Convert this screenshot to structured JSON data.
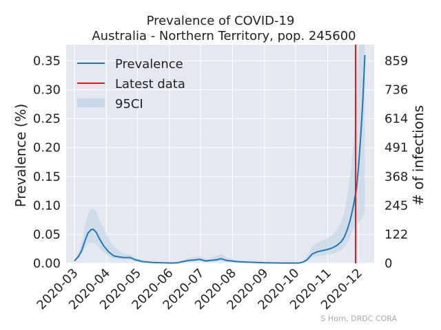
{
  "chart_data": {
    "type": "line",
    "title": "Prevalence of COVID-19",
    "subtitle": "Australia - Northern Territory, pop. 245600",
    "ylabel": "Prevalence (%)",
    "ylabel_right": "# of infections",
    "credit": "S Horn, DRDC CORA",
    "xlim": [
      "2020-02-22",
      "2020-12-16"
    ],
    "ylim": [
      0,
      0.378
    ],
    "x_ticks": [
      "2020-03-01",
      "2020-04-01",
      "2020-05-01",
      "2020-06-01",
      "2020-07-01",
      "2020-08-01",
      "2020-09-01",
      "2020-10-01",
      "2020-11-01",
      "2020-12-01"
    ],
    "x_tick_labels": [
      "2020-03",
      "2020-04",
      "2020-05",
      "2020-06",
      "2020-07",
      "2020-08",
      "2020-09",
      "2020-10",
      "2020-11",
      "2020-12"
    ],
    "y_ticks": [
      0.0,
      0.05,
      0.1,
      0.15,
      0.2,
      0.25,
      0.3,
      0.35
    ],
    "y_tick_labels": [
      "0.00",
      "0.05",
      "0.10",
      "0.15",
      "0.20",
      "0.25",
      "0.30",
      "0.35"
    ],
    "right_ticks": [
      0,
      122,
      245,
      368,
      491,
      614,
      736,
      859
    ],
    "right_tick_labels": [
      "0",
      "122",
      "245",
      "368",
      "491",
      "614",
      "736",
      "859"
    ],
    "legend": {
      "placement": "upper-left",
      "items": [
        "Prevalence",
        "Latest data",
        "95CI"
      ]
    },
    "latest_data_date": "2020-11-28",
    "colors": {
      "line": "#1f77b4",
      "latest": "#e31a1c",
      "band": "#bfd3e6",
      "background": "#e5e8f0",
      "grid": "#ffffff"
    },
    "series": [
      {
        "name": "Prevalence",
        "points": [
          [
            "2020-03-01",
            0.004
          ],
          [
            "2020-03-05",
            0.012
          ],
          [
            "2020-03-08",
            0.022
          ],
          [
            "2020-03-11",
            0.038
          ],
          [
            "2020-03-14",
            0.052
          ],
          [
            "2020-03-17",
            0.058
          ],
          [
            "2020-03-19",
            0.059
          ],
          [
            "2020-03-22",
            0.054
          ],
          [
            "2020-03-25",
            0.043
          ],
          [
            "2020-03-29",
            0.031
          ],
          [
            "2020-04-03",
            0.02
          ],
          [
            "2020-04-08",
            0.013
          ],
          [
            "2020-04-13",
            0.011
          ],
          [
            "2020-04-18",
            0.01
          ],
          [
            "2020-04-24",
            0.01
          ],
          [
            "2020-04-29",
            0.006
          ],
          [
            "2020-05-06",
            0.003
          ],
          [
            "2020-05-15",
            0.0015
          ],
          [
            "2020-05-25",
            0.001
          ],
          [
            "2020-06-04",
            0.0005
          ],
          [
            "2020-06-09",
            0.001
          ],
          [
            "2020-06-14",
            0.003
          ],
          [
            "2020-06-20",
            0.005
          ],
          [
            "2020-06-26",
            0.006
          ],
          [
            "2020-06-30",
            0.007
          ],
          [
            "2020-07-06",
            0.004
          ],
          [
            "2020-07-11",
            0.005
          ],
          [
            "2020-07-16",
            0.006
          ],
          [
            "2020-07-21",
            0.008
          ],
          [
            "2020-07-26",
            0.005
          ],
          [
            "2020-08-05",
            0.003
          ],
          [
            "2020-08-15",
            0.002
          ],
          [
            "2020-09-01",
            0.001
          ],
          [
            "2020-09-20",
            0.0005
          ],
          [
            "2020-10-04",
            0.0005
          ],
          [
            "2020-10-08",
            0.002
          ],
          [
            "2020-10-12",
            0.006
          ],
          [
            "2020-10-17",
            0.016
          ],
          [
            "2020-10-22",
            0.02
          ],
          [
            "2020-10-27",
            0.022
          ],
          [
            "2020-11-01",
            0.024
          ],
          [
            "2020-11-06",
            0.027
          ],
          [
            "2020-11-10",
            0.031
          ],
          [
            "2020-11-14",
            0.037
          ],
          [
            "2020-11-17",
            0.045
          ],
          [
            "2020-11-20",
            0.058
          ],
          [
            "2020-11-23",
            0.076
          ],
          [
            "2020-11-26",
            0.1
          ],
          [
            "2020-11-29",
            0.13
          ],
          [
            "2020-12-01",
            0.17
          ],
          [
            "2020-12-03",
            0.22
          ],
          [
            "2020-12-05",
            0.28
          ],
          [
            "2020-12-07",
            0.36
          ]
        ]
      },
      {
        "name": "95CI",
        "points": [
          [
            "2020-03-01",
            0.004,
            0.005
          ],
          [
            "2020-03-05",
            0.009,
            0.018
          ],
          [
            "2020-03-08",
            0.016,
            0.036
          ],
          [
            "2020-03-11",
            0.026,
            0.062
          ],
          [
            "2020-03-14",
            0.034,
            0.084
          ],
          [
            "2020-03-17",
            0.036,
            0.093
          ],
          [
            "2020-03-19",
            0.036,
            0.094
          ],
          [
            "2020-03-22",
            0.033,
            0.09
          ],
          [
            "2020-03-25",
            0.026,
            0.077
          ],
          [
            "2020-03-29",
            0.019,
            0.061
          ],
          [
            "2020-04-03",
            0.012,
            0.043
          ],
          [
            "2020-04-08",
            0.008,
            0.03
          ],
          [
            "2020-04-13",
            0.007,
            0.022
          ],
          [
            "2020-04-18",
            0.006,
            0.017
          ],
          [
            "2020-04-24",
            0.006,
            0.015
          ],
          [
            "2020-04-29",
            0.004,
            0.01
          ],
          [
            "2020-05-06",
            0.002,
            0.006
          ],
          [
            "2020-05-15",
            0.001,
            0.003
          ],
          [
            "2020-05-25",
            0.0005,
            0.002
          ],
          [
            "2020-06-04",
            0.0002,
            0.001
          ],
          [
            "2020-06-09",
            0.0005,
            0.003
          ],
          [
            "2020-06-14",
            0.0015,
            0.006
          ],
          [
            "2020-06-20",
            0.003,
            0.009
          ],
          [
            "2020-06-26",
            0.003,
            0.011
          ],
          [
            "2020-06-30",
            0.004,
            0.012
          ],
          [
            "2020-07-06",
            0.002,
            0.008
          ],
          [
            "2020-07-11",
            0.003,
            0.01
          ],
          [
            "2020-07-16",
            0.003,
            0.012
          ],
          [
            "2020-07-21",
            0.004,
            0.016
          ],
          [
            "2020-07-26",
            0.003,
            0.01
          ],
          [
            "2020-08-05",
            0.0015,
            0.006
          ],
          [
            "2020-08-15",
            0.001,
            0.004
          ],
          [
            "2020-09-01",
            0.0005,
            0.002
          ],
          [
            "2020-09-20",
            0.0002,
            0.001
          ],
          [
            "2020-10-04",
            0.0002,
            0.001
          ],
          [
            "2020-10-08",
            0.001,
            0.004
          ],
          [
            "2020-10-12",
            0.003,
            0.012
          ],
          [
            "2020-10-17",
            0.01,
            0.028
          ],
          [
            "2020-10-22",
            0.012,
            0.035
          ],
          [
            "2020-10-27",
            0.014,
            0.04
          ],
          [
            "2020-11-01",
            0.015,
            0.043
          ],
          [
            "2020-11-06",
            0.017,
            0.05
          ],
          [
            "2020-11-10",
            0.019,
            0.058
          ],
          [
            "2020-11-14",
            0.023,
            0.07
          ],
          [
            "2020-11-17",
            0.028,
            0.088
          ],
          [
            "2020-11-20",
            0.036,
            0.115
          ],
          [
            "2020-11-23",
            0.047,
            0.155
          ],
          [
            "2020-11-26",
            0.06,
            0.21
          ],
          [
            "2020-11-29",
            0.068,
            0.29
          ],
          [
            "2020-12-01",
            0.07,
            0.378
          ],
          [
            "2020-12-03",
            0.075,
            0.378
          ],
          [
            "2020-12-05",
            0.08,
            0.378
          ],
          [
            "2020-12-07",
            0.09,
            0.378
          ]
        ]
      }
    ]
  }
}
